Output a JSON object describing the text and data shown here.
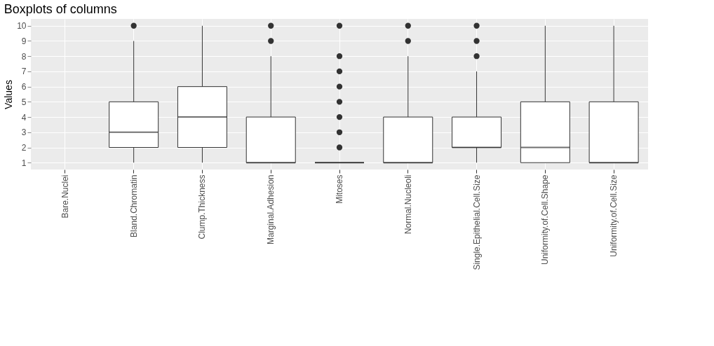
{
  "chart_data": {
    "type": "box",
    "title": "Boxplots of columns",
    "ylabel": "Values",
    "categories": [
      "Bare.Nuclei",
      "Bland.Chromatin",
      "Clump.Thickness",
      "Marginal.Adhesion",
      "Mitoses",
      "Normal.Nucleoli",
      "Single.Epithelial.Cell.Size",
      "Uniformity.of.Cell.Shape",
      "Uniformity.of.Cell.Size"
    ],
    "boxes": [
      null,
      {
        "low": 1,
        "q1": 2,
        "median": 3,
        "q3": 5,
        "high": 9,
        "outliers": [
          10
        ]
      },
      {
        "low": 1,
        "q1": 2,
        "median": 4,
        "q3": 6,
        "high": 10
      },
      {
        "low": 1,
        "q1": 1,
        "median": 1,
        "q3": 4,
        "high": 8,
        "outliers": [
          9,
          10
        ]
      },
      {
        "low": 1,
        "q1": 1,
        "median": 1,
        "q3": 1,
        "high": 1,
        "outliers": [
          2,
          3,
          4,
          5,
          6,
          7,
          8,
          10
        ]
      },
      {
        "low": 1,
        "q1": 1,
        "median": 1,
        "q3": 4,
        "high": 8,
        "outliers": [
          9,
          10
        ]
      },
      {
        "low": 1,
        "q1": 2,
        "median": 2,
        "q3": 4,
        "high": 7,
        "outliers": [
          8,
          9,
          10
        ]
      },
      {
        "low": 1,
        "q1": 1,
        "median": 2,
        "q3": 5,
        "high": 10
      },
      {
        "low": 1,
        "q1": 1,
        "median": 1,
        "q3": 5,
        "high": 10
      }
    ],
    "color": "#333333",
    "ylim": [
      0.55,
      10.45
    ],
    "yticks": [
      1,
      2,
      3,
      4,
      5,
      6,
      7,
      8,
      9,
      10
    ],
    "grid": true
  }
}
